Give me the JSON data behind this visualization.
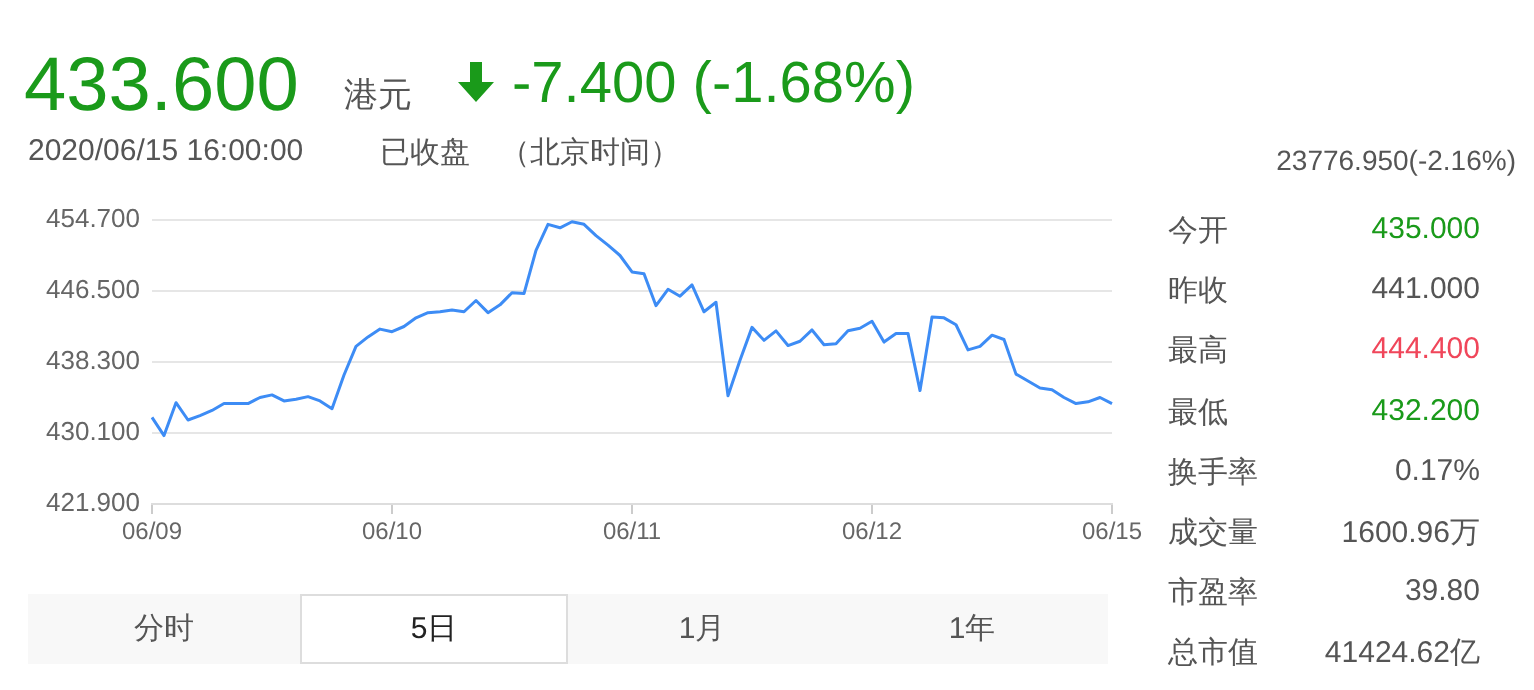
{
  "chart_data": {
    "type": "line",
    "color": "#3d8cf5",
    "marker": "none",
    "line_style": "solid",
    "grid": "y",
    "legend": false,
    "categories": [
      "06/09",
      null,
      null,
      null,
      null,
      null,
      null,
      null,
      null,
      null,
      null,
      null,
      null,
      null,
      null,
      null,
      null,
      null,
      null,
      null,
      "06/10",
      null,
      null,
      null,
      null,
      null,
      null,
      null,
      null,
      null,
      null,
      null,
      null,
      null,
      null,
      null,
      null,
      null,
      null,
      null,
      "06/11",
      null,
      null,
      null,
      null,
      null,
      null,
      null,
      null,
      null,
      null,
      null,
      null,
      null,
      null,
      null,
      null,
      null,
      null,
      null,
      "06/12",
      null,
      null,
      null,
      null,
      null,
      null,
      null,
      null,
      null,
      null,
      null,
      null,
      null,
      null,
      null,
      null,
      null,
      null,
      null,
      "06/15"
    ],
    "values": [
      431.9,
      429.8,
      433.6,
      431.6,
      432.1,
      432.7,
      433.5,
      433.5,
      433.5,
      434.2,
      434.5,
      433.8,
      434.0,
      434.3,
      433.8,
      432.9,
      436.8,
      440.1,
      441.2,
      442.1,
      441.8,
      442.4,
      443.4,
      444.0,
      444.1,
      444.3,
      444.1,
      445.4,
      444.0,
      444.9,
      446.3,
      446.2,
      451.2,
      454.2,
      453.8,
      454.5,
      454.2,
      452.9,
      451.8,
      450.6,
      448.7,
      448.5,
      444.8,
      446.7,
      445.9,
      447.2,
      444.1,
      445.2,
      434.4,
      438.5,
      442.3,
      440.8,
      441.9,
      440.2,
      440.7,
      442.0,
      440.3,
      440.4,
      441.9,
      442.2,
      443.0,
      440.6,
      441.6,
      441.6,
      435.0,
      443.5,
      443.4,
      442.6,
      439.7,
      440.1,
      441.4,
      440.9,
      436.9,
      436.1,
      435.3,
      435.1,
      434.2,
      433.5,
      433.7,
      434.2,
      433.5
    ],
    "ylim": [
      421.9,
      454.7
    ],
    "yticks": [
      {
        "value": 421.9,
        "label": "421.900"
      },
      {
        "value": 430.1,
        "label": "430.100"
      },
      {
        "value": 438.3,
        "label": "438.300"
      },
      {
        "value": 446.5,
        "label": "446.500"
      },
      {
        "value": 454.7,
        "label": "454.700"
      }
    ],
    "annotations": [
      "433.600",
      "港元",
      "-7.400 (-1.68%)",
      "2020/06/15 16:00:00",
      "已收盘",
      "（北京时间）",
      "23776.950(-2.16%)",
      "今开",
      "435.000",
      "昨收",
      "441.000",
      "最高",
      "444.400",
      "最低",
      "432.200",
      "换手率",
      "0.17%",
      "成交量",
      "1600.96万",
      "市盈率",
      "39.80",
      "总市值",
      "41424.62亿",
      "分时",
      "5日",
      "1月",
      "1年"
    ]
  }
}
